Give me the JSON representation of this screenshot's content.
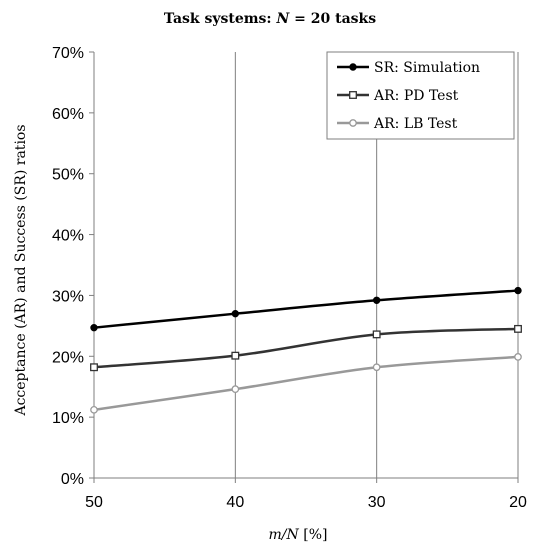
{
  "chart_data": {
    "type": "line",
    "title_prefix": "Task systems: ",
    "title_var": "N",
    "title_suffix": " = 20 tasks",
    "xlabel_var": "m/N",
    "xlabel_unit": " [%]",
    "ylabel": "Acceptance (AR) and Success (SR) ratios",
    "categories": [
      "50",
      "40",
      "30",
      "20"
    ],
    "y_ticks": [
      "0%",
      "10%",
      "20%",
      "30%",
      "40%",
      "50%",
      "60%",
      "70%"
    ],
    "ylim": [
      0,
      70
    ],
    "grid": "vertical",
    "legend_position": "top-right",
    "series": [
      {
        "name": "SR: Simulation",
        "values": [
          24.7,
          27.0,
          29.2,
          30.8
        ],
        "color": "#000000",
        "marker": "filled-circle"
      },
      {
        "name": "AR: PD Test",
        "values": [
          18.2,
          20.1,
          23.6,
          24.5
        ],
        "color": "#333333",
        "marker": "open-square"
      },
      {
        "name": "AR: LB Test",
        "values": [
          11.2,
          14.6,
          18.2,
          19.9
        ],
        "color": "#999999",
        "marker": "open-circle"
      }
    ]
  }
}
